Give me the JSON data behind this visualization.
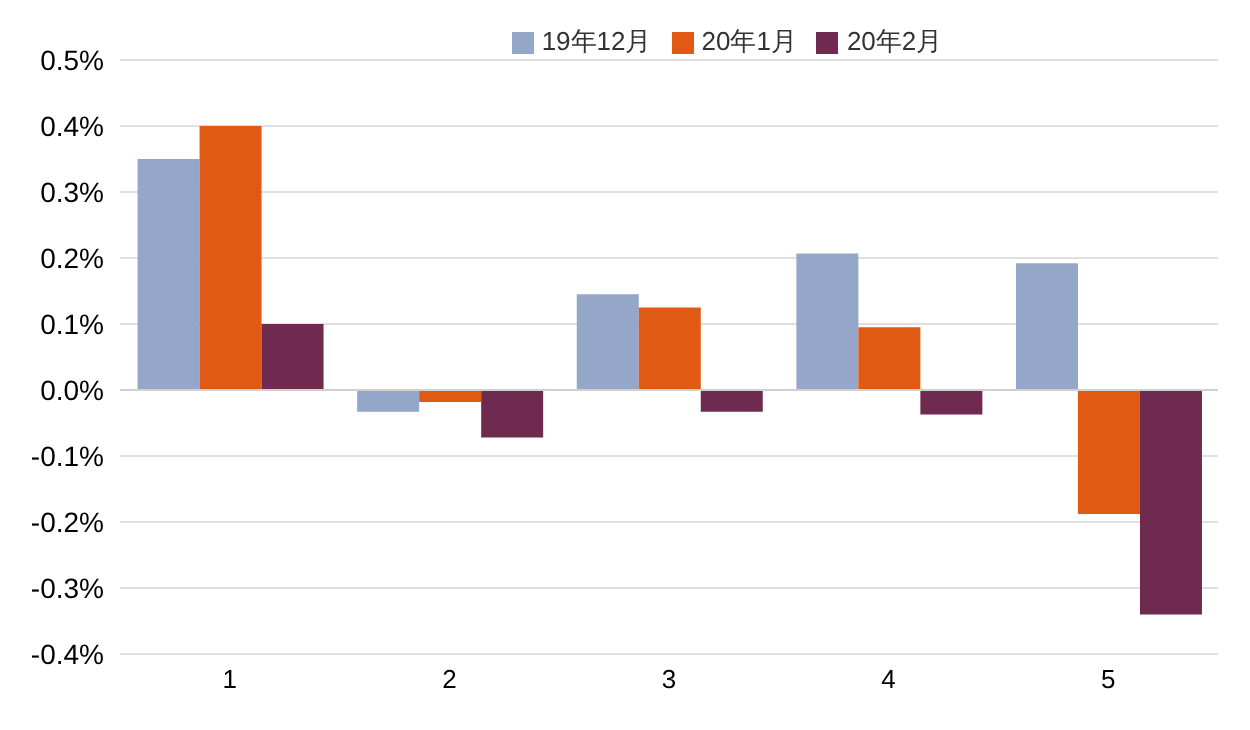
{
  "chart_data": {
    "type": "bar",
    "categories": [
      "1",
      "2",
      "3",
      "4",
      "5"
    ],
    "series": [
      {
        "name": "19年12月",
        "color": "#94a7c9",
        "values": [
          0.35,
          -0.033,
          0.145,
          0.207,
          0.192
        ]
      },
      {
        "name": "20年1月",
        "color": "#e05a14",
        "values": [
          0.4,
          -0.018,
          0.125,
          0.095,
          -0.188
        ]
      },
      {
        "name": "20年2月",
        "color": "#6e2b4f",
        "values": [
          0.1,
          -0.072,
          -0.033,
          -0.037,
          -0.34
        ]
      }
    ],
    "ylim": [
      -0.4,
      0.5
    ],
    "yticks": [
      {
        "value": -0.4,
        "label": "-0.4%"
      },
      {
        "value": -0.3,
        "label": "-0.3%"
      },
      {
        "value": -0.2,
        "label": "-0.2%"
      },
      {
        "value": -0.1,
        "label": "-0.1%"
      },
      {
        "value": 0,
        "label": "0.0%"
      },
      {
        "value": 0.1,
        "label": "0.1%"
      },
      {
        "value": 0.2,
        "label": "0.2%"
      },
      {
        "value": 0.3,
        "label": "0.3%"
      },
      {
        "value": 0.4,
        "label": "0.4%"
      },
      {
        "value": 0.5,
        "label": "0.5%"
      }
    ],
    "grid": "y",
    "legend": "top"
  }
}
